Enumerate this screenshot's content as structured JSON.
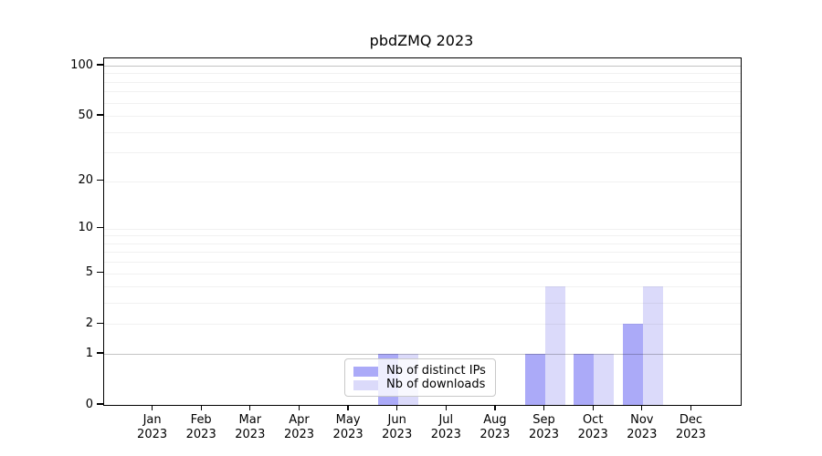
{
  "title": "pbdZMQ 2023",
  "chart_data": {
    "type": "bar",
    "title": "pbdZMQ 2023",
    "categories": [
      {
        "month": "Jan",
        "year": "2023"
      },
      {
        "month": "Feb",
        "year": "2023"
      },
      {
        "month": "Mar",
        "year": "2023"
      },
      {
        "month": "Apr",
        "year": "2023"
      },
      {
        "month": "May",
        "year": "2023"
      },
      {
        "month": "Jun",
        "year": "2023"
      },
      {
        "month": "Jul",
        "year": "2023"
      },
      {
        "month": "Aug",
        "year": "2023"
      },
      {
        "month": "Sep",
        "year": "2023"
      },
      {
        "month": "Oct",
        "year": "2023"
      },
      {
        "month": "Nov",
        "year": "2023"
      },
      {
        "month": "Dec",
        "year": "2023"
      }
    ],
    "series": [
      {
        "name": "Nb of distinct IPs",
        "color": "#abaaf8",
        "values": [
          0,
          0,
          0,
          0,
          0,
          1,
          0,
          0,
          1,
          1,
          2,
          0
        ]
      },
      {
        "name": "Nb of downloads",
        "color": "#dbdafa",
        "values": [
          0,
          0,
          0,
          0,
          0,
          1,
          0,
          0,
          4,
          1,
          4,
          0
        ]
      }
    ],
    "yscale": "log10(value+1)",
    "yticks": [
      0,
      1,
      2,
      5,
      10,
      20,
      50,
      100
    ],
    "ylim": [
      0,
      110
    ],
    "grid": {
      "minor_lines": [
        2,
        3,
        4,
        5,
        6,
        7,
        8,
        9,
        10,
        20,
        30,
        40,
        50,
        60,
        70,
        80,
        90
      ],
      "emphasized_lines": [
        1,
        100
      ]
    },
    "legend_position": "bottom-center"
  }
}
